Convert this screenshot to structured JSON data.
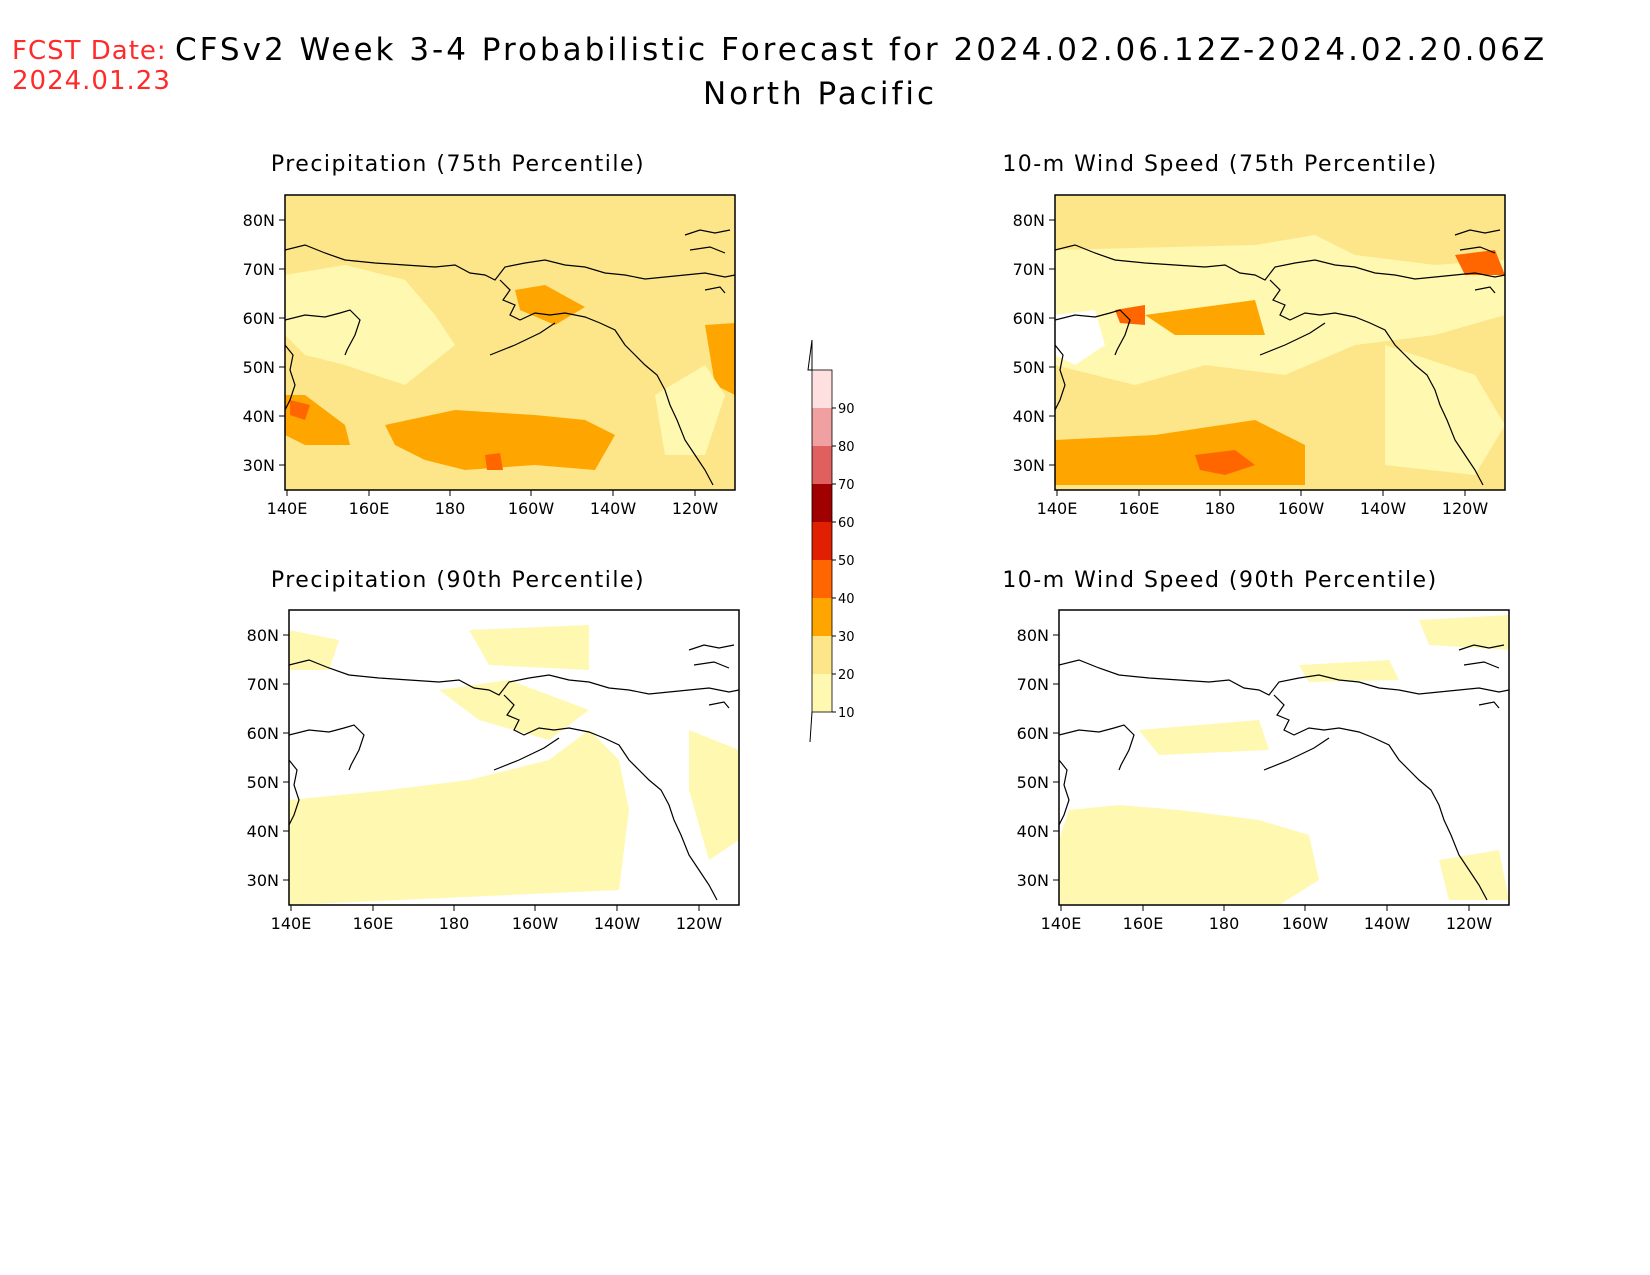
{
  "header": {
    "fcst_label": "FCST Date:",
    "fcst_date": "2024.01.23",
    "title_line1": "CFSv2 Week 3-4 Probabilistic Forecast for 2024.02.06.12Z-2024.02.20.06Z",
    "title_line2": "North Pacific"
  },
  "panels": [
    {
      "title": "Precipitation (75th Percentile)"
    },
    {
      "title": "10-m Wind Speed (75th Percentile)"
    },
    {
      "title": "Precipitation (90th Percentile)"
    },
    {
      "title": "10-m Wind Speed (90th Percentile)"
    }
  ],
  "axes": {
    "lat_labels": [
      "80N",
      "70N",
      "60N",
      "50N",
      "40N",
      "30N"
    ],
    "lon_labels": [
      "140E",
      "160E",
      "180",
      "160W",
      "140W",
      "120W"
    ]
  },
  "colorbar": {
    "labels": [
      "10",
      "20",
      "30",
      "40",
      "50",
      "60",
      "70",
      "80",
      "90"
    ],
    "colors": [
      "#fff8b0",
      "#fde68a",
      "#ffa500",
      "#ff6600",
      "#e02000",
      "#a00000",
      "#e06060",
      "#f0a0a0",
      "#ffe0e0"
    ]
  },
  "colors": {
    "fcst_red": "#ff2a2a",
    "light_yellow": "#fff8b0",
    "yellow": "#fde68a",
    "orange": "#ffa500",
    "dark_orange": "#ff6600",
    "red": "#e02000"
  }
}
